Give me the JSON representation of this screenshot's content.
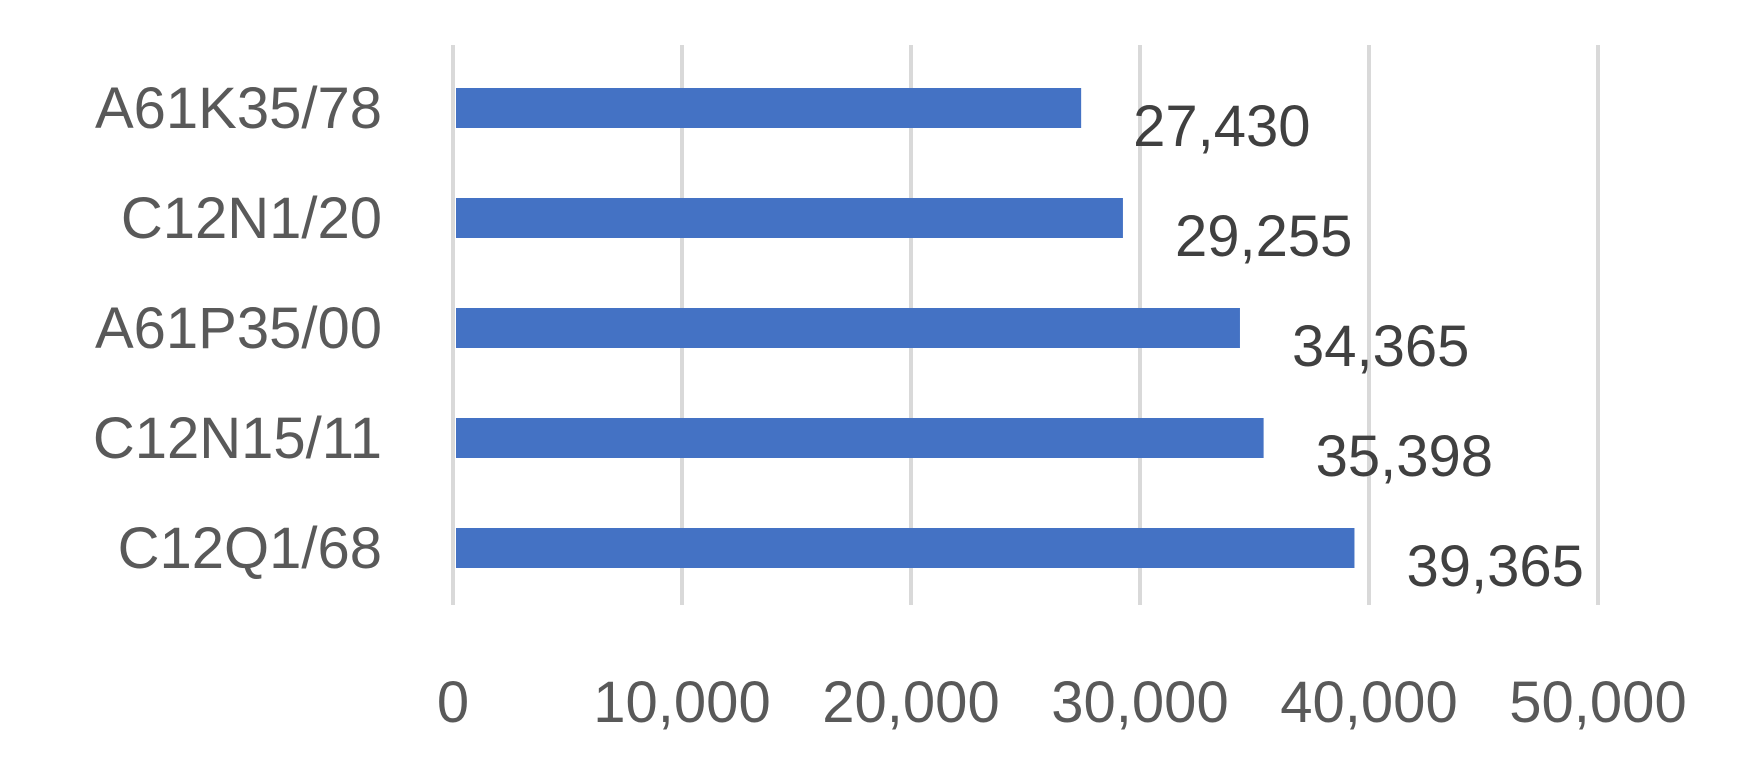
{
  "chart_data": {
    "type": "bar",
    "orientation": "horizontal",
    "categories": [
      "A61K35/78",
      "C12N1/20",
      "A61P35/00",
      "C12N15/11",
      "C12Q1/68"
    ],
    "values": [
      27430,
      29255,
      34365,
      35398,
      39365
    ],
    "value_labels": [
      "27,430",
      "29,255",
      "34,365",
      "35,398",
      "39,365"
    ],
    "x_ticks": [
      "0",
      "10,000",
      "20,000",
      "30,000",
      "40,000",
      "50,000"
    ],
    "xlim": [
      0,
      50000
    ],
    "title": "",
    "xlabel": "",
    "ylabel": "",
    "grid": true,
    "legend": "none",
    "colors": {
      "bar": "#4472c4",
      "grid": "#d9d9d9",
      "text": "#595959",
      "data_label": "#404040"
    }
  }
}
